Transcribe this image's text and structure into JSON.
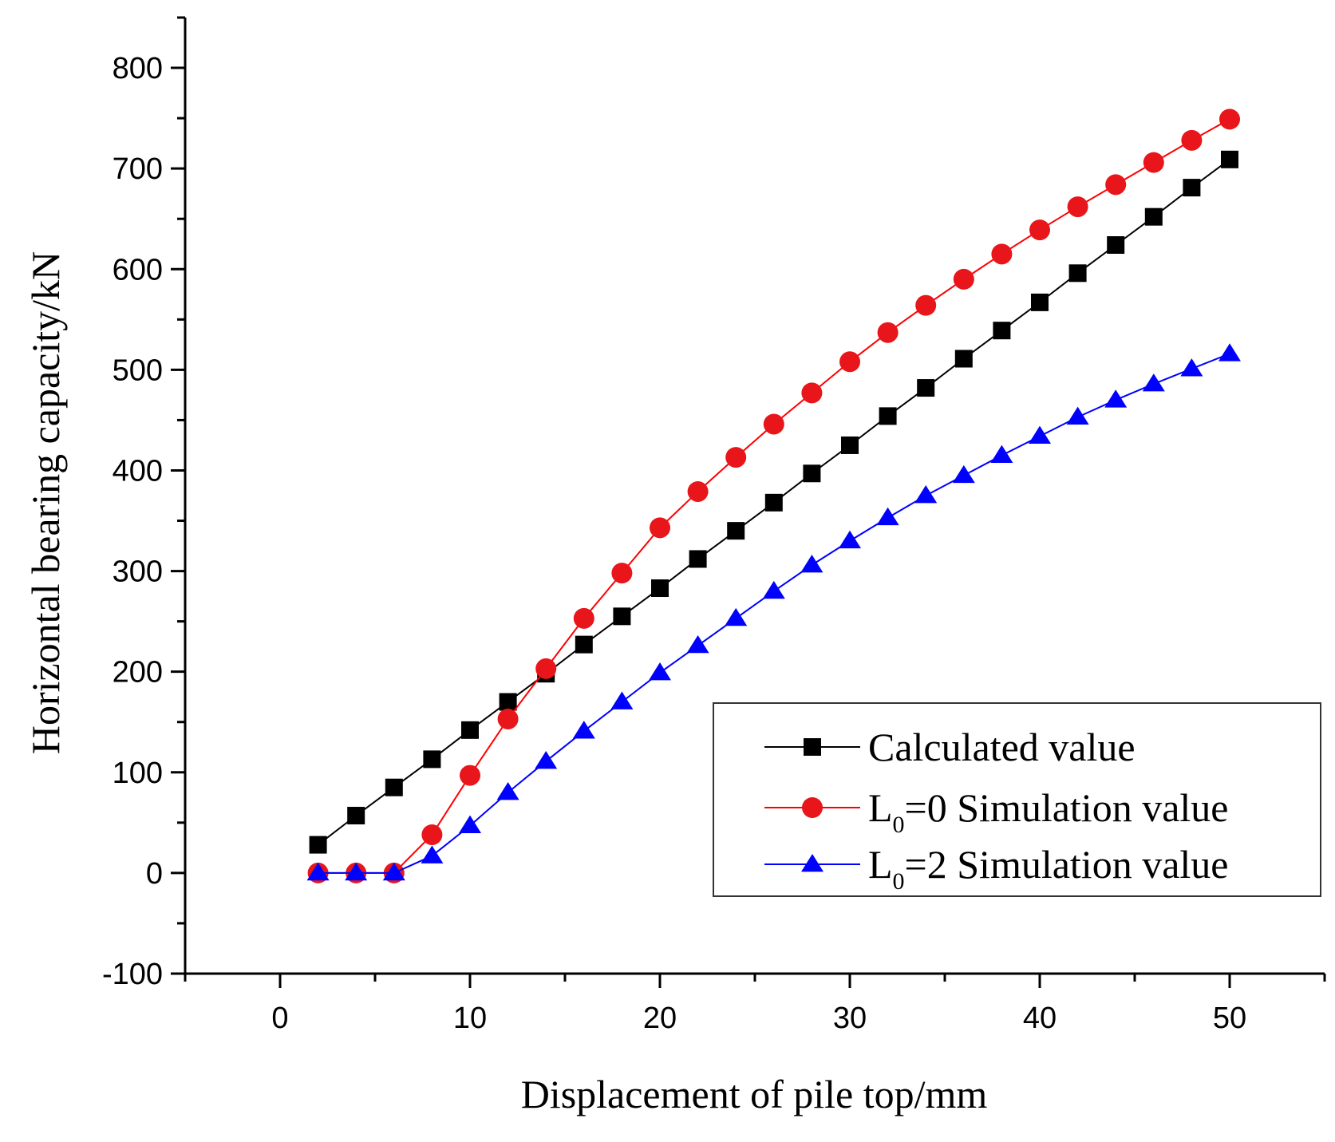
{
  "chart_data": {
    "type": "line",
    "xlabel": "Displacement of pile top/mm",
    "ylabel": "Horizontal bearing capacity/kN",
    "xlim": [
      -5,
      55
    ],
    "ylim": [
      -100,
      850
    ],
    "xticks": [
      0,
      10,
      20,
      30,
      40,
      50
    ],
    "yticks": [
      -100,
      0,
      100,
      200,
      300,
      400,
      500,
      600,
      700,
      800
    ],
    "x": [
      2,
      4,
      6,
      8,
      10,
      12,
      14,
      16,
      18,
      20,
      22,
      24,
      26,
      28,
      30,
      32,
      34,
      36,
      38,
      40,
      42,
      44,
      46,
      48,
      50
    ],
    "series": [
      {
        "name": "Calculated value",
        "color": "#000000",
        "marker": "square",
        "values": [
          28,
          57,
          85,
          113,
          142,
          170,
          198,
          227,
          255,
          283,
          312,
          340,
          368,
          397,
          425,
          454,
          482,
          511,
          539,
          567,
          596,
          624,
          652,
          681,
          709
        ]
      },
      {
        "name": "L0=0 Simulation value",
        "color": "#ff0000",
        "marker_color": "#e8151b",
        "marker": "circle",
        "values": [
          0,
          0,
          0,
          38,
          97,
          153,
          203,
          253,
          298,
          343,
          379,
          413,
          446,
          477,
          508,
          537,
          564,
          590,
          615,
          639,
          662,
          684,
          706,
          728,
          749
        ]
      },
      {
        "name": "L0=2 Simulation value",
        "color": "#0000ff",
        "marker": "triangle",
        "values": [
          0,
          0,
          0,
          17,
          47,
          80,
          111,
          141,
          170,
          199,
          226,
          253,
          280,
          306,
          330,
          353,
          375,
          395,
          415,
          434,
          453,
          470,
          486,
          501,
          516
        ]
      }
    ],
    "legend": {
      "placement": "bottom-right",
      "entries": [
        {
          "main": "Calculated value",
          "prefix": "",
          "sub": "",
          "suffix": ""
        },
        {
          "main": "",
          "prefix": "L",
          "sub": "0",
          "suffix": "=0 Simulation value"
        },
        {
          "main": "",
          "prefix": "L",
          "sub": "0",
          "suffix": "=2 Simulation value"
        }
      ]
    },
    "grid": false
  }
}
